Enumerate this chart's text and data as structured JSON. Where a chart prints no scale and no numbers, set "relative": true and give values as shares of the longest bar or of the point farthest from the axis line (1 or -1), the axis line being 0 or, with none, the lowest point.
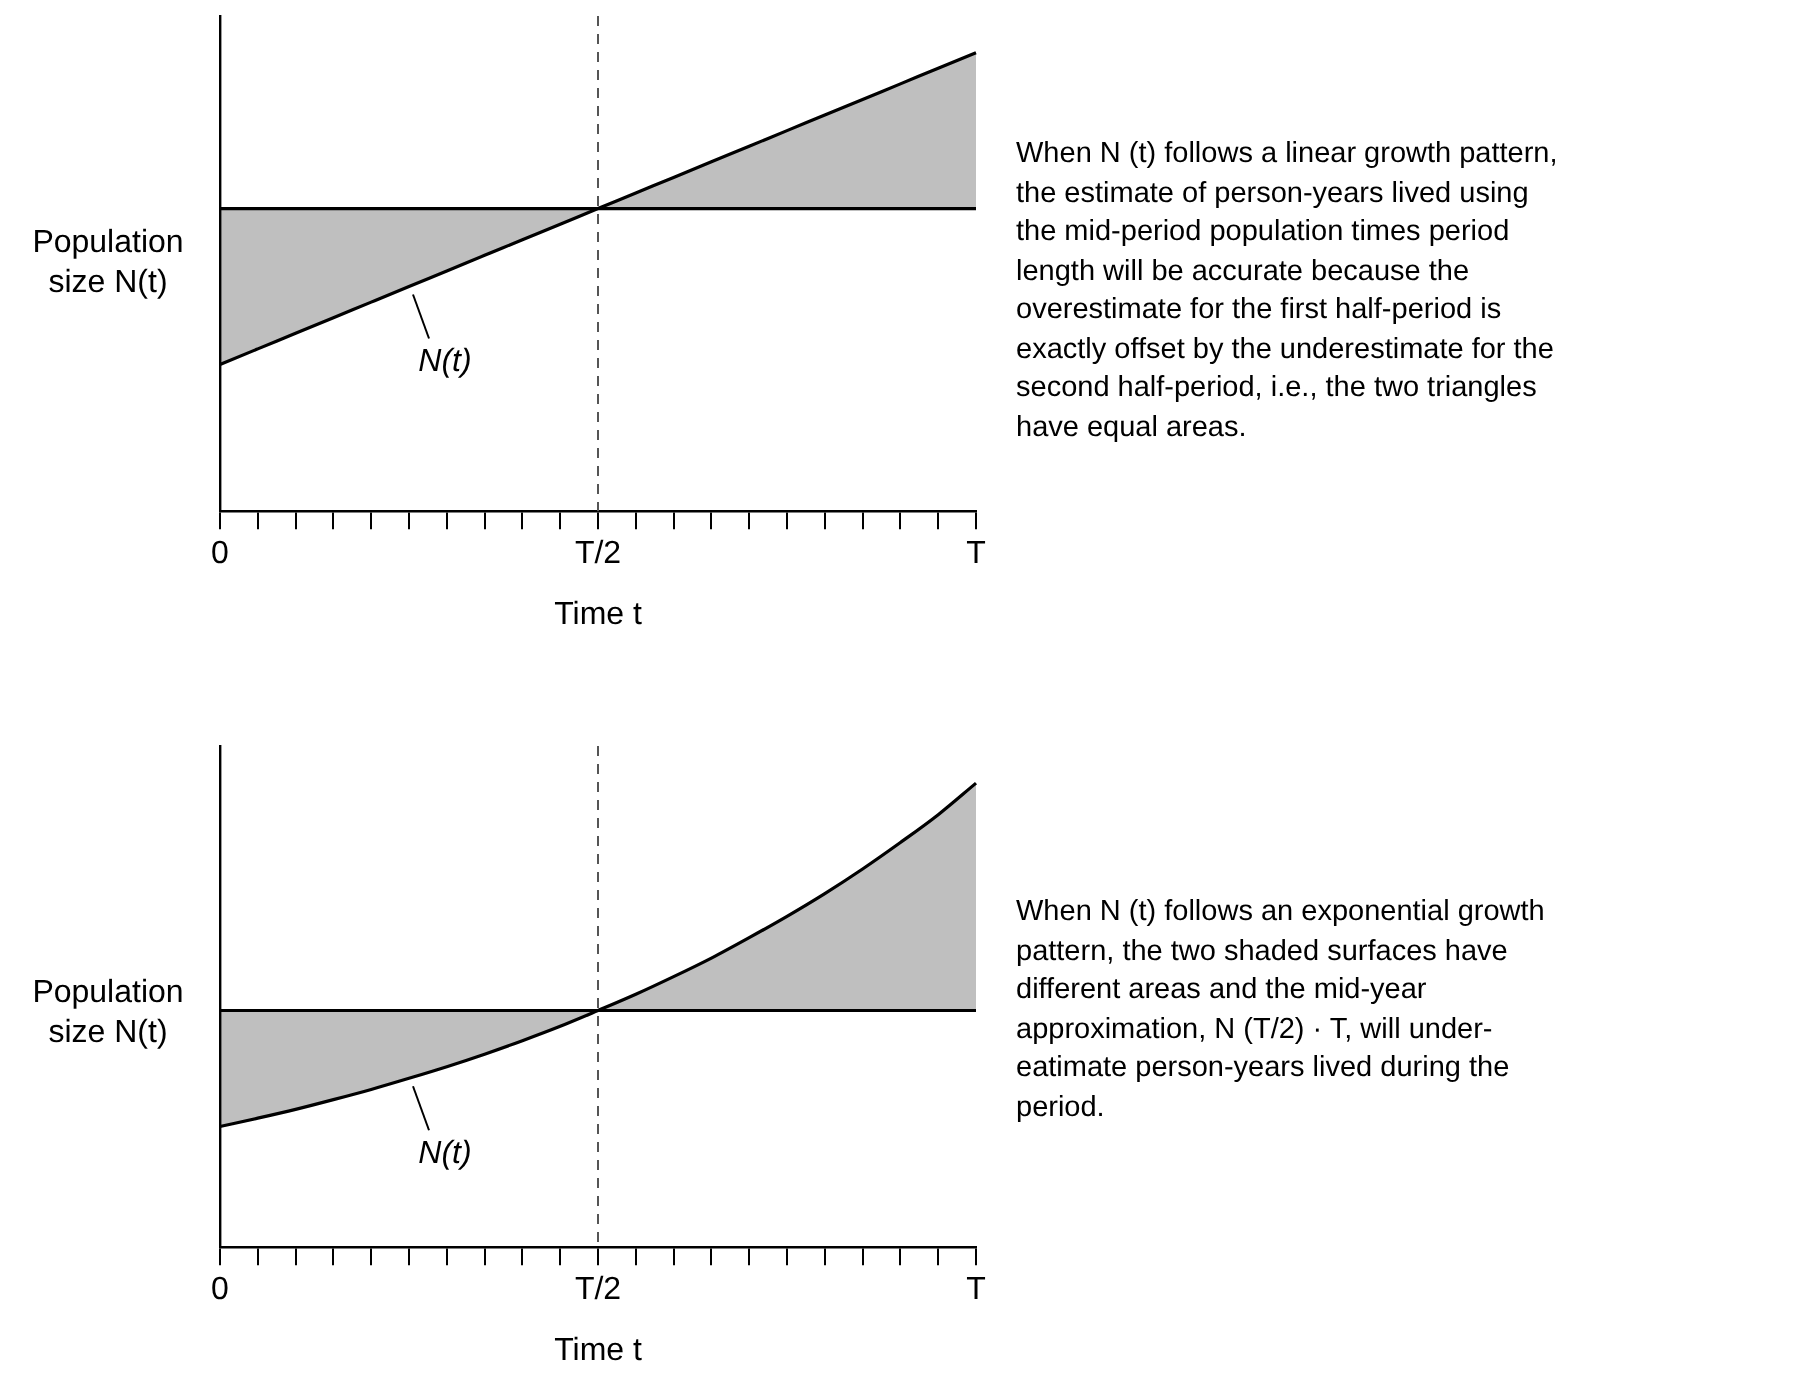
{
  "chart_data": [
    {
      "type": "line",
      "relative": true,
      "xlabel": "Time t",
      "ylabel": "Population size N(t)",
      "categories": [
        "0",
        null,
        null,
        null,
        null,
        null,
        null,
        null,
        null,
        null,
        "T/2",
        null,
        null,
        null,
        null,
        null,
        null,
        null,
        null,
        null,
        "T"
      ],
      "series": [
        {
          "type": "line",
          "color": "#000000",
          "values": [
            0.66,
            0.66,
            0.66,
            0.66,
            0.66,
            0.66,
            0.66,
            0.66,
            0.66,
            0.66,
            0.66,
            0.66,
            0.66,
            0.66,
            0.66,
            0.66,
            0.66,
            0.66,
            0.66,
            0.66,
            0.66
          ],
          "lower": [
            0.32,
            0.354,
            0.388,
            0.422,
            0.456,
            0.49,
            0.524,
            0.558,
            0.592,
            0.626,
            0.66,
            0.66,
            0.66,
            0.66,
            0.66,
            0.66,
            0.66,
            0.66,
            0.66,
            0.66,
            0.66
          ],
          "upper": [
            0.66,
            0.66,
            0.66,
            0.66,
            0.66,
            0.66,
            0.66,
            0.66,
            0.66,
            0.66,
            0.66,
            0.694,
            0.728,
            0.762,
            0.796,
            0.83,
            0.864,
            0.898,
            0.932,
            0.966,
            1
          ]
        },
        {
          "type": "line",
          "color": "#000000",
          "values": [
            0.32,
            0.354,
            0.388,
            0.422,
            0.456,
            0.49,
            0.524,
            0.558,
            0.592,
            0.626,
            0.66,
            0.694,
            0.728,
            0.762,
            0.796,
            0.83,
            0.864,
            0.898,
            0.932,
            0.966,
            1
          ]
        }
      ],
      "ref_lines": [
        {
          "axis": "x",
          "value": "T/2",
          "line_style": "dashed",
          "color": "#555555"
        }
      ],
      "grid": false,
      "tick_labels": "x",
      "marker": "none",
      "annotations": [
        "N(t)",
        "When N (t) follows a linear growth pattern, the estimate of person-years lived using the mid-period population times period length will be accurate because the overestimate for the first half-period is exactly offset by the underestimate for the second half-period, i.e., the two triangles have equal areas."
      ]
    },
    {
      "type": "line",
      "relative": true,
      "xlabel": "Time t",
      "ylabel": "Population size N(t)",
      "categories": [
        "0",
        null,
        null,
        null,
        null,
        null,
        null,
        null,
        null,
        null,
        "T/2",
        null,
        null,
        null,
        null,
        null,
        null,
        null,
        null,
        null,
        "T"
      ],
      "series": [
        {
          "type": "line",
          "color": "#000000",
          "values": [
            0.51,
            0.51,
            0.51,
            0.51,
            0.51,
            0.51,
            0.51,
            0.51,
            0.51,
            0.51,
            0.51,
            0.51,
            0.51,
            0.51,
            0.51,
            0.51,
            0.51,
            0.51,
            0.51,
            0.51,
            0.51
          ],
          "lower": [
            0.26,
            0.278,
            0.297,
            0.318,
            0.34,
            0.364,
            0.389,
            0.416,
            0.445,
            0.476,
            0.51,
            0.51,
            0.51,
            0.51,
            0.51,
            0.51,
            0.51,
            0.51,
            0.51,
            0.51,
            0.51
          ],
          "upper": [
            0.51,
            0.51,
            0.51,
            0.51,
            0.51,
            0.51,
            0.51,
            0.51,
            0.51,
            0.51,
            0.51,
            0.545,
            0.583,
            0.623,
            0.667,
            0.713,
            0.762,
            0.815,
            0.872,
            0.932,
            1
          ]
        },
        {
          "type": "line",
          "color": "#000000",
          "values": [
            0.26,
            0.278,
            0.297,
            0.318,
            0.34,
            0.364,
            0.389,
            0.416,
            0.445,
            0.476,
            0.51,
            0.545,
            0.583,
            0.623,
            0.667,
            0.713,
            0.762,
            0.815,
            0.872,
            0.932,
            1
          ]
        }
      ],
      "ref_lines": [
        {
          "axis": "x",
          "value": "T/2",
          "line_style": "dashed",
          "color": "#555555"
        }
      ],
      "grid": false,
      "tick_labels": "x",
      "marker": "none",
      "annotations": [
        "N(t)",
        "When N (t) follows an exponential growth pattern, the two shaded surfaces have different areas and the mid-year approximation, N (T/2) · T, will under-eatimate person-years lived during the period."
      ]
    }
  ]
}
